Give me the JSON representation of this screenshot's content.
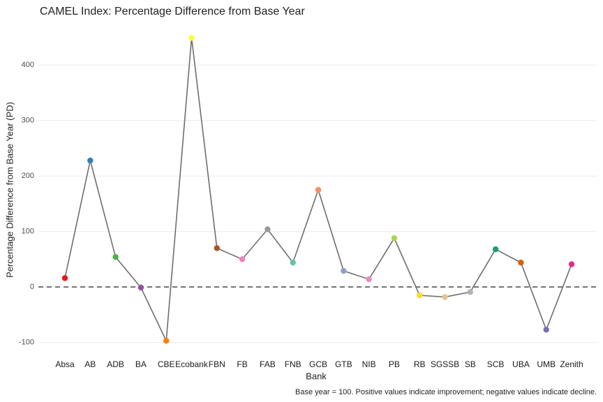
{
  "chart_data": {
    "type": "line",
    "title": "CAMEL Index: Percentage Difference from Base Year",
    "x_label": "Bank",
    "y_label": "Percentage Difference from Base Year (PD)",
    "caption": "Base year = 100. Positive values indicate improvement; negative values indicate decline.",
    "categories": [
      "Absa",
      "AB",
      "ADB",
      "BA",
      "CBE",
      "Ecobank",
      "FBN",
      "FB",
      "FAB",
      "FNB",
      "GCB",
      "GTB",
      "NIB",
      "PB",
      "RB",
      "SGSSB",
      "SB",
      "SCB",
      "UBA",
      "UMB",
      "Zenith"
    ],
    "values": [
      16,
      228,
      54,
      -1,
      -97,
      449,
      70,
      50,
      104,
      44,
      175,
      29,
      14,
      88,
      -15,
      -18,
      -9,
      68,
      44,
      -77,
      41
    ],
    "colors": [
      "#e41a1c",
      "#377eb8",
      "#4daf4a",
      "#984ea3",
      "#ff7f00",
      "#ffff33",
      "#a65628",
      "#f781bf",
      "#999999",
      "#66c2a5",
      "#fc8d62",
      "#8da0cb",
      "#e78ac3",
      "#a6d854",
      "#ffd92f",
      "#e5c494",
      "#b3b3b3",
      "#1b9e77",
      "#d95f02",
      "#7570b3",
      "#e7298a"
    ],
    "line_color": "#6e6e6e",
    "reference_line": 0,
    "ylim": [
      -118,
      467
    ],
    "yticks": [
      -100,
      0,
      100,
      200,
      300,
      400
    ],
    "grid": true
  }
}
